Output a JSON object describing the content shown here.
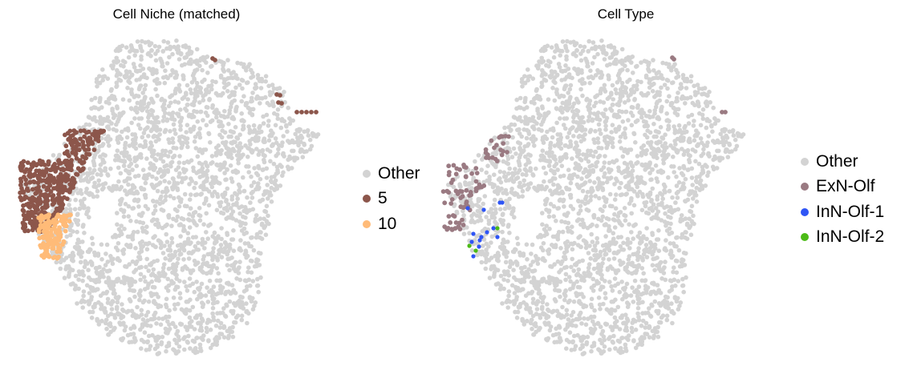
{
  "chart_data": [
    {
      "type": "scatter",
      "title": "Cell Niche (matched)",
      "legend_placement": "right",
      "grid": false,
      "axes_visible": false,
      "series": [
        {
          "name": "Other",
          "color": "#d3d3d3"
        },
        {
          "name": "5",
          "color": "#8c564b"
        },
        {
          "name": "10",
          "color": "#ffbb78"
        }
      ]
    },
    {
      "type": "scatter",
      "title": "Cell Type",
      "legend_placement": "right",
      "grid": false,
      "axes_visible": false,
      "series": [
        {
          "name": "Other",
          "color": "#d3d3d3"
        },
        {
          "name": "ExN-Olf",
          "color": "#9a7a82"
        },
        {
          "name": "InN-Olf-1",
          "color": "#2f55f5"
        },
        {
          "name": "InN-Olf-2",
          "color": "#4cbb17"
        }
      ]
    }
  ]
}
